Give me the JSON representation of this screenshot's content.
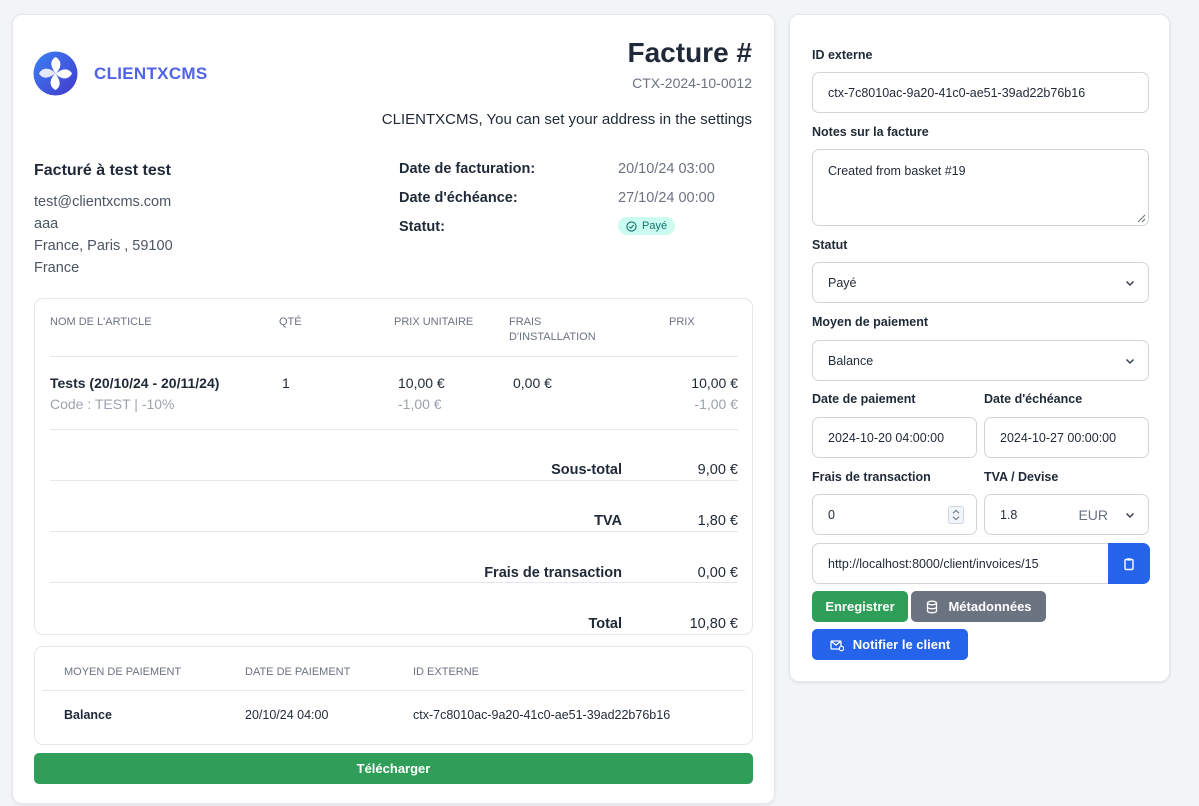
{
  "invoice": {
    "brand": "CLIENTXCMS",
    "title": "Facture #",
    "number": "CTX-2024-10-0012",
    "company_line": "CLIENTXCMS, You can set your address in the settings",
    "billed_to": {
      "title": "Facturé à test test",
      "email": "test@clientxcms.com",
      "address1": "aaa",
      "address2": "France, Paris , 59100",
      "country": "France"
    },
    "meta": {
      "date_label": "Date de facturation:",
      "date_value": "20/10/24 03:00",
      "due_label": "Date d'échéance:",
      "due_value": "27/10/24 00:00",
      "status_label": "Statut:",
      "status_value": "Payé"
    },
    "items_table": {
      "headers": {
        "name": "NOM DE L'ARTICLE",
        "qty": "QTÉ",
        "unit_price": "PRIX UNITAIRE",
        "setup_fee_1": "FRAIS",
        "setup_fee_2": "D'INSTALLATION",
        "price": "PRIX"
      },
      "rows": [
        {
          "name": "Tests (20/10/24 - 20/11/24)",
          "code": "Code : TEST | -10%",
          "qty": "1",
          "unit_price": "10,00 €",
          "unit_discount": "-1,00 €",
          "setup_fee": "0,00 €",
          "price": "10,00 €",
          "price_discount": "-1,00 €"
        }
      ],
      "totals": {
        "subtotal_label": "Sous-total",
        "subtotal_value": "9,00 €",
        "tax_label": "TVA",
        "tax_value": "1,80 €",
        "fees_label": "Frais de transaction",
        "fees_value": "0,00 €",
        "total_label": "Total",
        "total_value": "10,80 €"
      }
    },
    "payments_table": {
      "headers": {
        "method": "MOYEN DE PAIEMENT",
        "date": "DATE DE PAIEMENT",
        "external_id": "ID EXTERNE"
      },
      "rows": [
        {
          "method": "Balance",
          "date": "20/10/24 04:00",
          "external_id": "ctx-7c8010ac-9a20-41c0-ae51-39ad22b76b16"
        }
      ]
    },
    "download_label": "Télécharger"
  },
  "side": {
    "external_id_label": "ID externe",
    "external_id_value": "ctx-7c8010ac-9a20-41c0-ae51-39ad22b76b16",
    "notes_label": "Notes sur la facture",
    "notes_value": "Created from basket #19",
    "status_label": "Statut",
    "status_value": "Payé",
    "payment_method_label": "Moyen de paiement",
    "payment_method_value": "Balance",
    "paid_at_label": "Date de paiement",
    "paid_at_value": "2024-10-20 04:00:00",
    "due_date_label": "Date d'échéance",
    "due_date_value": "2024-10-27 00:00:00",
    "fees_label": "Frais de transaction",
    "fees_value": "0",
    "tax_currency_label": "TVA / Devise",
    "tax_value": "1.8",
    "currency_value": "EUR",
    "link_value": "http://localhost:8000/client/invoices/15",
    "save_label": "Enregistrer",
    "metadata_label": "Métadonnées",
    "notify_label": "Notifier le client"
  },
  "colors": {
    "primary": "#2563eb",
    "success": "#2f9e58",
    "secondary": "#6b7280",
    "badge_bg": "#ccfbef",
    "badge_text": "#0f766e",
    "brand": "#4f63e8"
  }
}
